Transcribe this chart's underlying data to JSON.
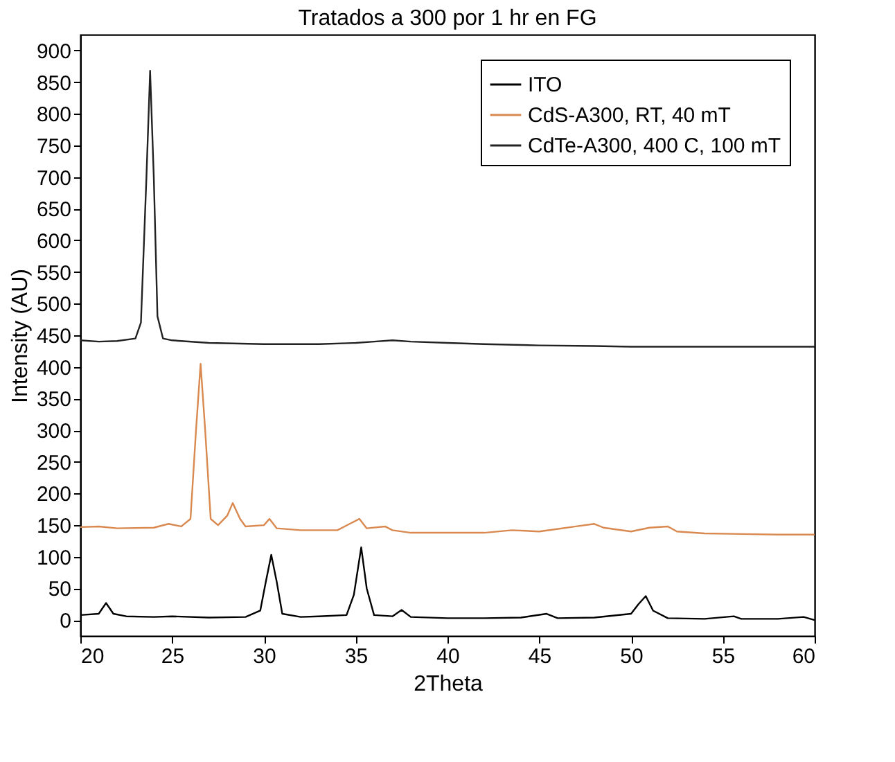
{
  "chart_data": {
    "type": "line",
    "title": "Tratados a 300 por 1 hr en FG",
    "xlabel": "2Theta",
    "ylabel": "Intensity (AU)",
    "xlim": [
      20,
      60
    ],
    "xticks": [
      20,
      25,
      30,
      35,
      40,
      45,
      50,
      55,
      60
    ],
    "ylim": [
      -25,
      925
    ],
    "yticks": [
      0,
      50,
      100,
      150,
      200,
      250,
      300,
      350,
      400,
      450,
      500,
      550,
      600,
      650,
      700,
      750,
      800,
      850,
      900
    ],
    "grid": false,
    "legend": "top right",
    "marker": "none",
    "line_style": "solid",
    "series": [
      {
        "name": "ITO",
        "color": "#000000",
        "x": [
          20,
          21,
          21.4,
          21.8,
          22.5,
          24,
          25,
          27,
          29,
          29.8,
          30.1,
          30.4,
          30.7,
          31,
          32,
          33,
          34.5,
          34.9,
          35.3,
          35.6,
          36,
          37,
          37.5,
          38,
          40,
          42,
          44,
          45.4,
          46,
          48,
          50,
          50.4,
          50.8,
          51.2,
          52,
          54,
          55.6,
          56,
          58,
          59.4,
          60
        ],
        "values": [
          8,
          10,
          27,
          10,
          6,
          5,
          6,
          4,
          5,
          15,
          60,
          103,
          60,
          10,
          5,
          6,
          8,
          40,
          115,
          50,
          8,
          6,
          16,
          5,
          3,
          3,
          4,
          10,
          3,
          4,
          10,
          25,
          38,
          15,
          3,
          2,
          6,
          2,
          2,
          5,
          0
        ]
      },
      {
        "name": "CdS-A300, RT, 40 mT",
        "color": "#d9894f",
        "x": [
          20,
          21,
          22,
          24,
          24.8,
          25.5,
          26,
          26.3,
          26.55,
          26.8,
          27.1,
          27.5,
          28,
          28.3,
          28.7,
          29,
          30,
          30.3,
          30.7,
          32,
          34,
          35.2,
          35.6,
          36.6,
          37,
          38,
          40,
          42,
          43.5,
          45,
          47,
          48,
          48.5,
          50,
          51,
          52,
          52.5,
          54,
          56,
          58,
          60
        ],
        "values": [
          147,
          148,
          145,
          146,
          152,
          148,
          160,
          300,
          405,
          300,
          160,
          150,
          165,
          185,
          160,
          148,
          150,
          160,
          145,
          142,
          142,
          160,
          145,
          148,
          142,
          138,
          138,
          138,
          142,
          140,
          148,
          152,
          146,
          140,
          146,
          148,
          140,
          137,
          136,
          135,
          135
        ]
      },
      {
        "name": "CdTe-A300, 400 C, 100 mT",
        "color": "#222222",
        "x": [
          20,
          21,
          22,
          23,
          23.3,
          23.6,
          23.8,
          24,
          24.2,
          24.5,
          25,
          27,
          30,
          33,
          35,
          36,
          37,
          38,
          40,
          42,
          45,
          48,
          50,
          55,
          60
        ],
        "values": [
          442,
          440,
          441,
          445,
          470,
          700,
          868,
          700,
          480,
          445,
          442,
          438,
          436,
          436,
          438,
          440,
          442,
          440,
          438,
          436,
          434,
          433,
          432,
          432,
          432
        ]
      }
    ]
  }
}
